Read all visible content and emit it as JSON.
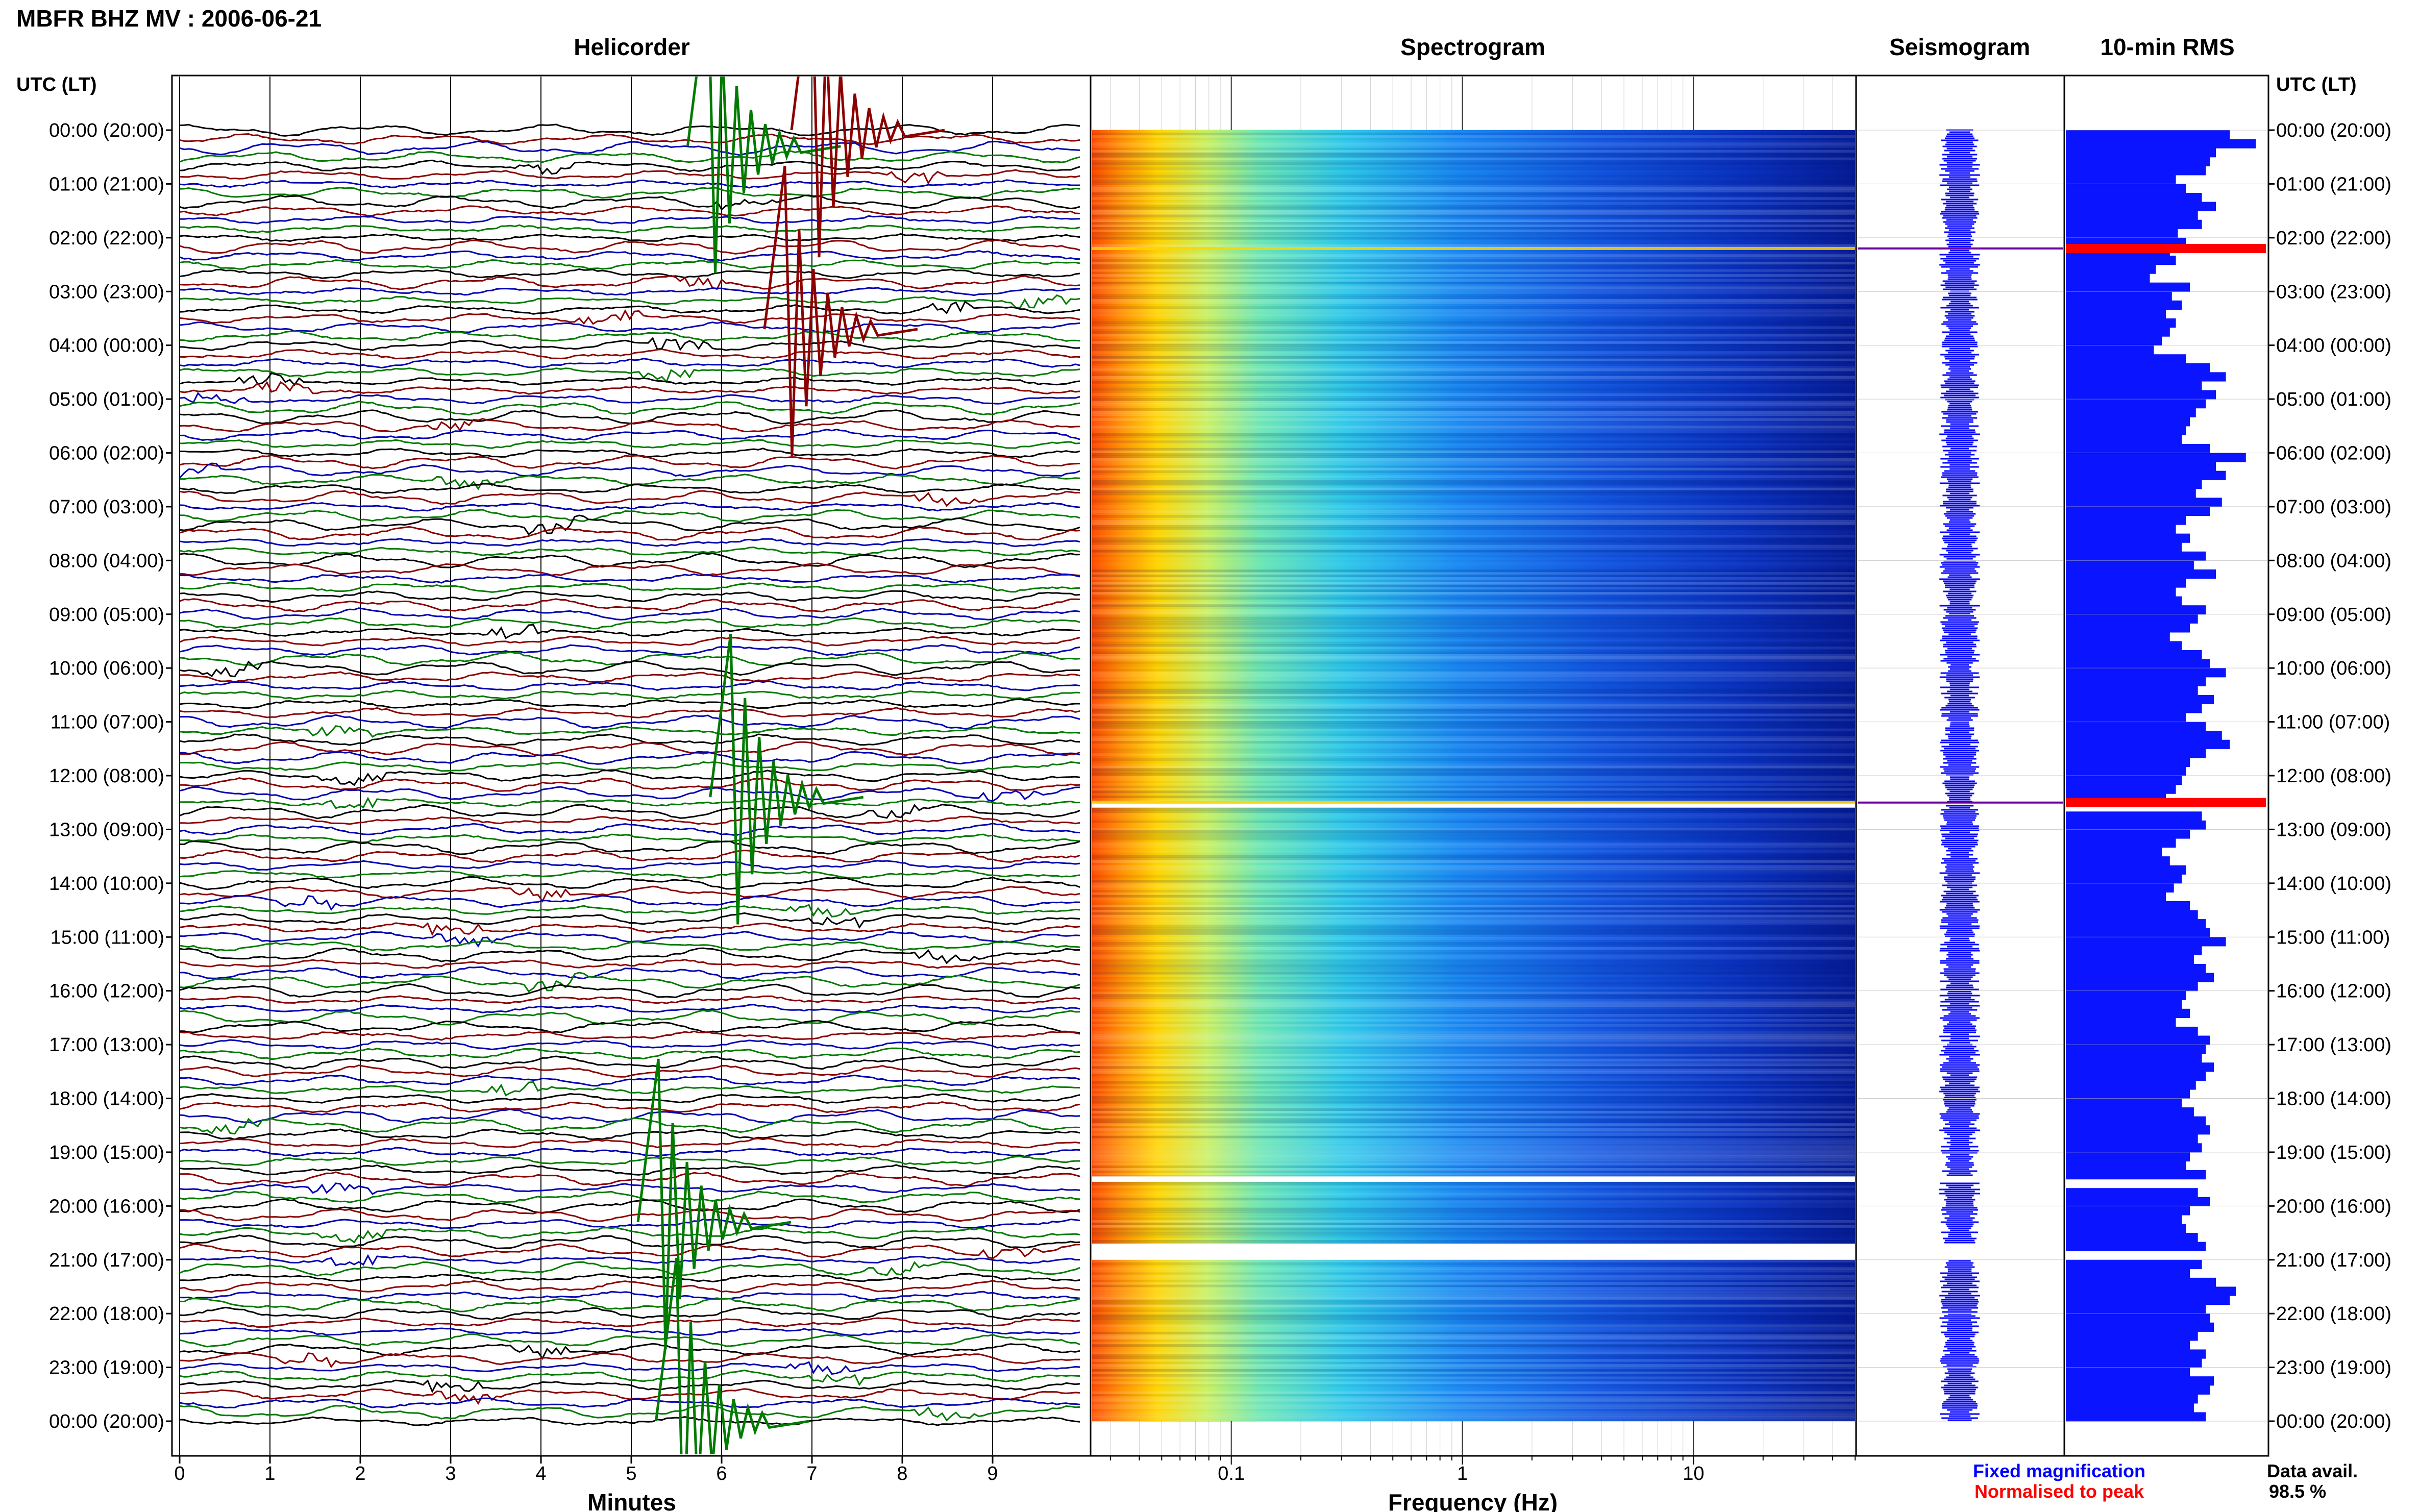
{
  "header": {
    "station_title": "MBFR BHZ MV : 2006-06-21"
  },
  "panels": {
    "helicorder_title": "Helicorder",
    "spectrogram_title": "Spectrogram",
    "seismogram_title": "Seismogram",
    "rms_title": "10-min RMS"
  },
  "axes": {
    "time_axis_label": "UTC (LT)",
    "minutes_label": "Minutes",
    "frequency_label": "Frequency (Hz)"
  },
  "legend": {
    "fixed": "Fixed magnification",
    "normalised": "Normalised to peak",
    "data_avail_label": "Data avail.",
    "data_avail_value": "98.5 %"
  },
  "colors": {
    "trace_cycle": [
      "#000000",
      "#8b0000",
      "#0000b4",
      "#007a00"
    ],
    "fixed": "#0000ff",
    "normalised": "#ff0000",
    "rms_bar": "#0a14ff"
  },
  "chart_data": {
    "type": "heatmap",
    "hour_labels": [
      "00:00 (20:00)",
      "01:00 (21:00)",
      "02:00 (22:00)",
      "03:00 (23:00)",
      "04:00 (00:00)",
      "05:00 (01:00)",
      "06:00 (02:00)",
      "07:00 (03:00)",
      "08:00 (04:00)",
      "09:00 (05:00)",
      "10:00 (06:00)",
      "11:00 (07:00)",
      "12:00 (08:00)",
      "13:00 (09:00)",
      "14:00 (10:00)",
      "15:00 (11:00)",
      "16:00 (12:00)",
      "17:00 (13:00)",
      "18:00 (14:00)",
      "19:00 (15:00)",
      "20:00 (16:00)",
      "21:00 (17:00)",
      "22:00 (18:00)",
      "23:00 (19:00)",
      "00:00 (20:00)"
    ],
    "helicorder": {
      "x_ticks": [
        "0",
        "1",
        "2",
        "3",
        "4",
        "5",
        "6",
        "7",
        "8",
        "9"
      ],
      "xlim": [
        0,
        10
      ],
      "rows": 144,
      "minutes_per_row": 10
    },
    "spectrogram": {
      "x_scale": "log",
      "xlim": [
        0.025,
        50
      ],
      "x_ticks": [
        {
          "v": 0.1,
          "label": "0.1"
        },
        {
          "v": 1,
          "label": "1"
        },
        {
          "v": 10,
          "label": "10"
        }
      ],
      "gaps_utc_hours": [
        [
          12.5,
          12.55
        ],
        [
          19.45,
          19.55
        ],
        [
          20.7,
          21.0
        ]
      ]
    },
    "rms": {
      "normalised_peaks_utc_hours": [
        2.2,
        12.5
      ],
      "values": [
        0.82,
        0.95,
        0.75,
        0.72,
        0.7,
        0.55,
        0.6,
        0.68,
        0.75,
        0.66,
        0.68,
        0.56,
        0.6,
        0.52,
        0.55,
        0.45,
        0.42,
        0.62,
        0.53,
        0.58,
        0.5,
        0.55,
        0.52,
        0.48,
        0.44,
        0.6,
        0.72,
        0.8,
        0.68,
        0.75,
        0.7,
        0.65,
        0.62,
        0.6,
        0.58,
        0.72,
        0.9,
        0.75,
        0.8,
        0.68,
        0.65,
        0.78,
        0.72,
        0.6,
        0.55,
        0.62,
        0.58,
        0.7,
        0.64,
        0.75,
        0.6,
        0.55,
        0.58,
        0.7,
        0.66,
        0.62,
        0.52,
        0.58,
        0.68,
        0.72,
        0.8,
        0.7,
        0.66,
        0.74,
        0.68,
        0.6,
        0.7,
        0.78,
        0.82,
        0.7,
        0.62,
        0.6,
        0.58,
        0.55,
        0.5,
        0.66,
        0.68,
        0.7,
        0.62,
        0.55,
        0.48,
        0.52,
        0.6,
        0.58,
        0.54,
        0.5,
        0.62,
        0.66,
        0.7,
        0.72,
        0.8,
        0.68,
        0.64,
        0.7,
        0.74,
        0.66,
        0.6,
        0.58,
        0.62,
        0.55,
        0.66,
        0.72,
        0.7,
        0.68,
        0.74,
        0.7,
        0.65,
        0.62,
        0.58,
        0.64,
        0.7,
        0.72,
        0.66,
        0.68,
        0.62,
        0.6,
        0.7,
        0.74,
        0.66,
        0.72,
        0.62,
        0.58,
        0.6,
        0.66,
        0.7,
        0.74,
        0.68,
        0.62,
        0.75,
        0.85,
        0.82,
        0.7,
        0.72,
        0.74,
        0.66,
        0.62,
        0.7,
        0.68,
        0.62,
        0.74,
        0.72,
        0.66,
        0.64,
        0.7
      ]
    },
    "events": [
      {
        "minute": 5.85,
        "utc_hour": 0.3,
        "color_index": 3
      },
      {
        "minute": 7.0,
        "utc_hour": 0.0,
        "color_index": 1
      },
      {
        "minute": 6.7,
        "utc_hour": 3.7,
        "color_index": 1
      },
      {
        "minute": 6.1,
        "utc_hour": 12.4,
        "color_index": 3
      },
      {
        "minute": 5.3,
        "utc_hour": 20.3,
        "color_index": 3
      },
      {
        "minute": 5.5,
        "utc_hour": 24.0,
        "color_index": 3
      }
    ]
  }
}
